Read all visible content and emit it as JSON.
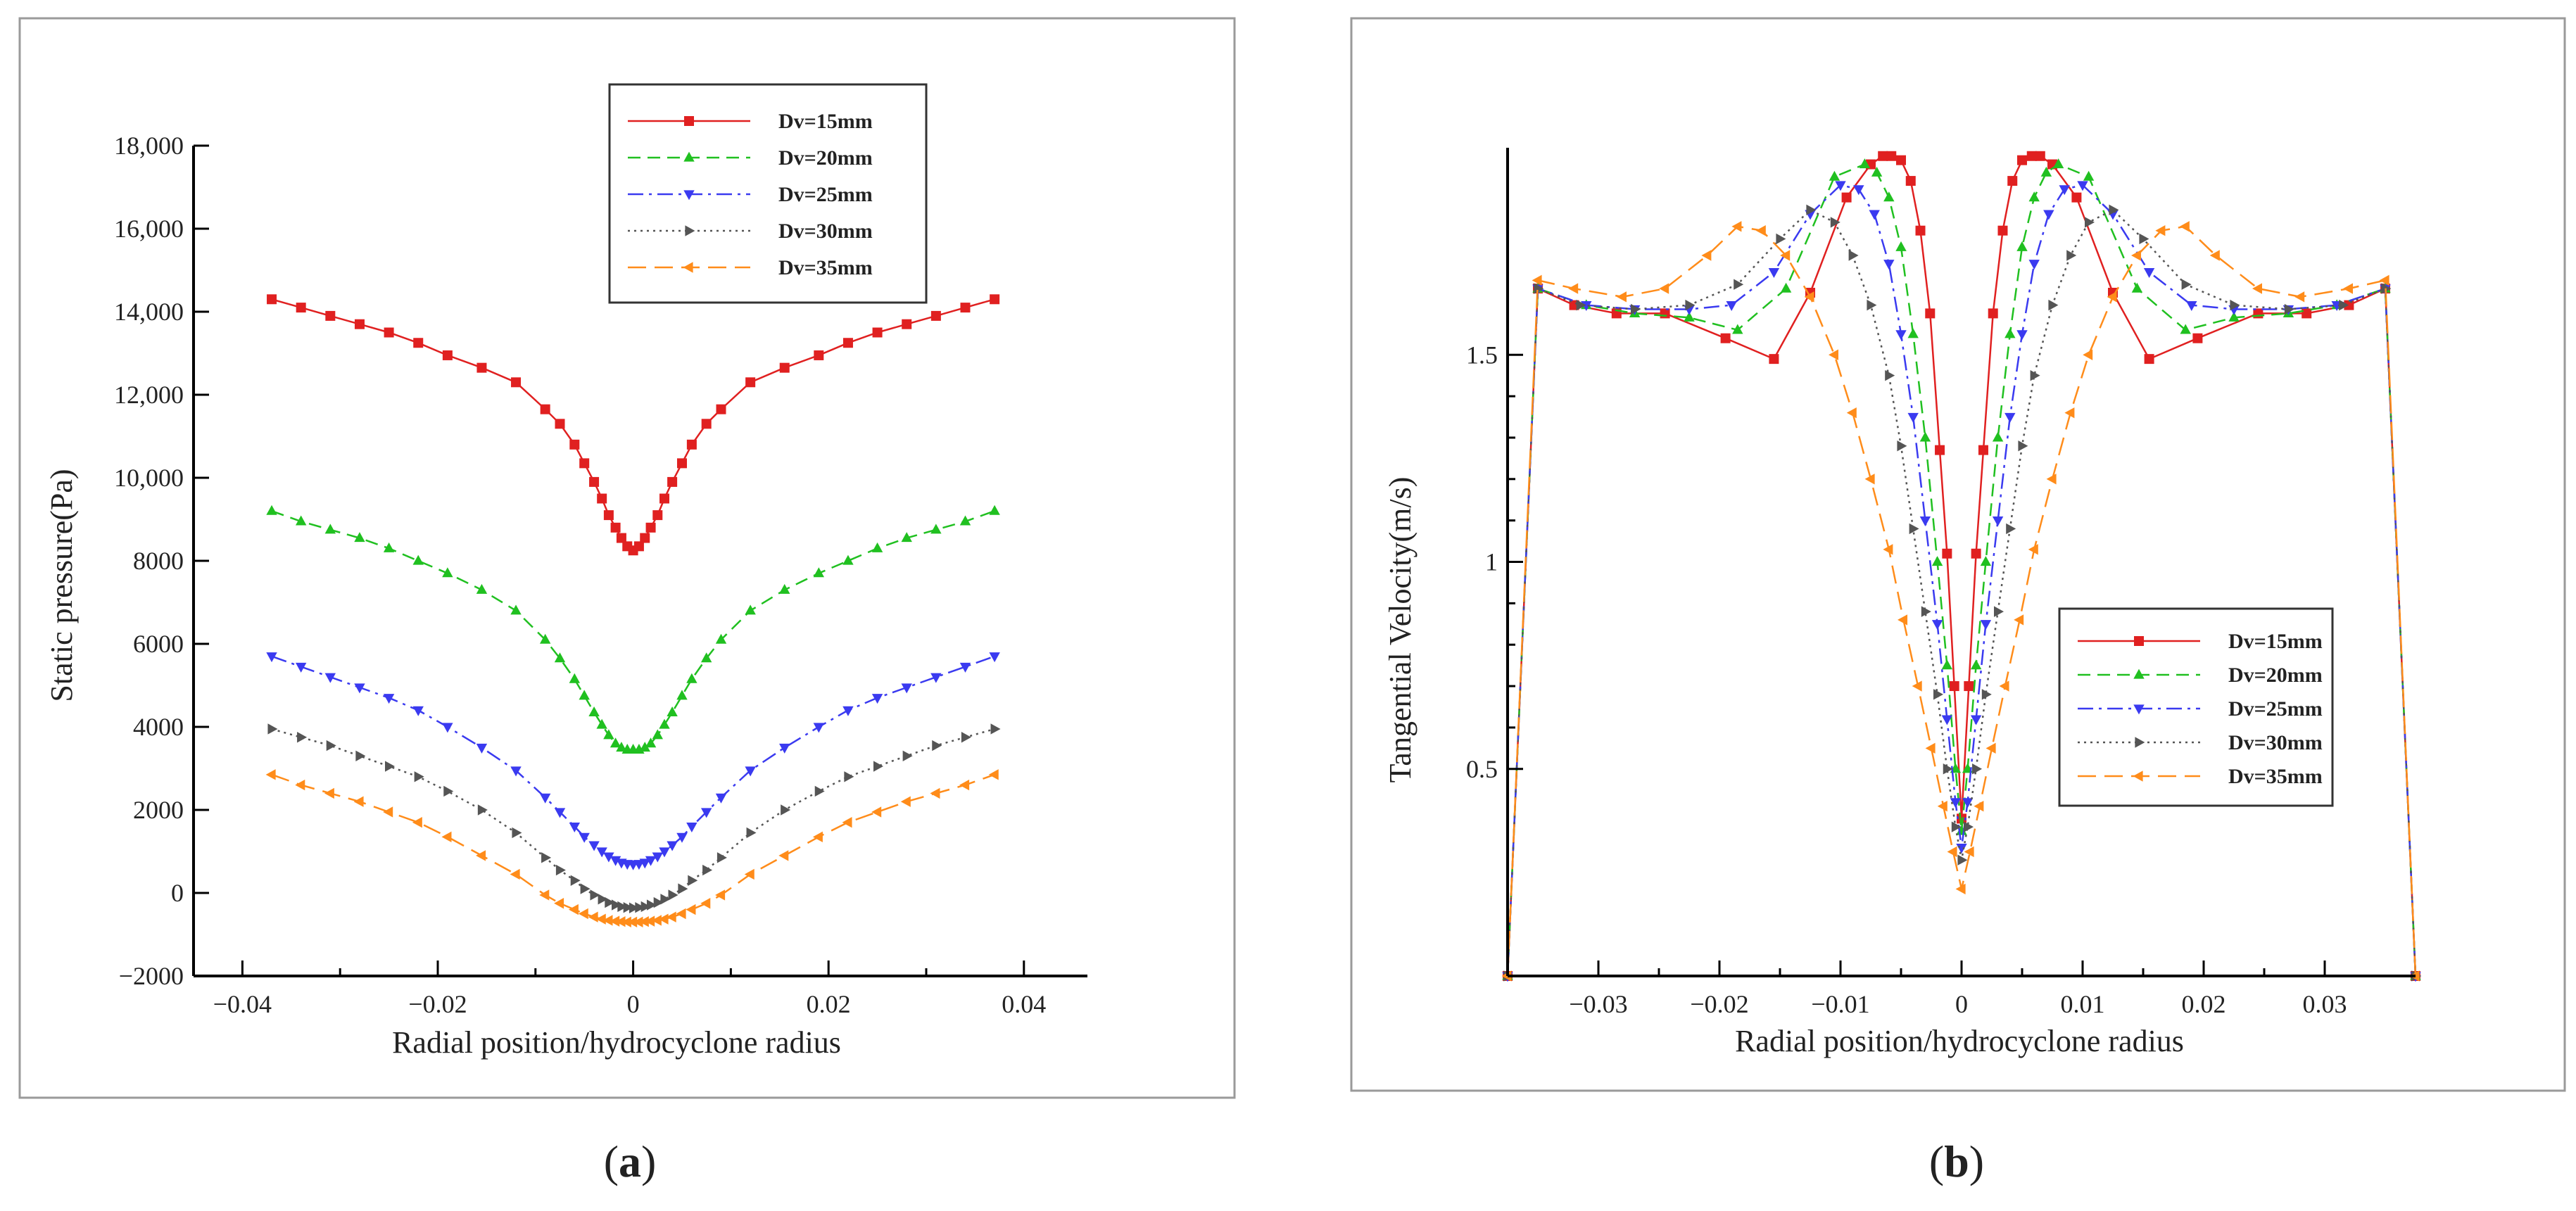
{
  "panels": [
    {
      "caption_letter": "a",
      "chart_data": {
        "type": "line",
        "title": "",
        "xlabel": "Radial position/hydrocyclone radius",
        "ylabel": "Static pressure(Pa)",
        "xlim": [
          -0.045,
          0.0465
        ],
        "ylim": [
          -2000,
          18000
        ],
        "xticks": [
          -0.04,
          -0.02,
          0,
          0.02,
          0.04
        ],
        "xtick_labels": [
          "−0.04",
          "−0.02",
          "0",
          "0.02",
          "0.04"
        ],
        "yticks": [
          -2000,
          0,
          2000,
          4000,
          6000,
          8000,
          10000,
          12000,
          14000,
          16000,
          18000
        ],
        "ytick_labels": [
          "−2000",
          "0",
          "2000",
          "4000",
          "6000",
          "8000",
          "10,000",
          "12,000",
          "14,000",
          "16,000",
          "18,000"
        ],
        "legend_position": "top-right",
        "x": [
          -0.037,
          -0.034,
          -0.031,
          -0.028,
          -0.025,
          -0.022,
          -0.019,
          -0.0155,
          -0.012,
          -0.009,
          -0.0075,
          -0.006,
          -0.005,
          -0.004,
          -0.0032,
          -0.0025,
          -0.0018,
          -0.0012,
          -0.0006,
          0,
          0.0006,
          0.0012,
          0.0018,
          0.0025,
          0.0032,
          0.004,
          0.005,
          0.006,
          0.0075,
          0.009,
          0.012,
          0.0155,
          0.019,
          0.022,
          0.025,
          0.028,
          0.031,
          0.034,
          0.037
        ],
        "series": [
          {
            "name": "Dv=15mm",
            "color": "#e02020",
            "dash": "",
            "marker": "square",
            "values": [
              14300,
              14100,
              13900,
              13700,
              13500,
              13250,
              12950,
              12650,
              12300,
              11650,
              11300,
              10800,
              10350,
              9900,
              9500,
              9100,
              8800,
              8550,
              8350,
              8250,
              8350,
              8550,
              8800,
              9100,
              9500,
              9900,
              10350,
              10800,
              11300,
              11650,
              12300,
              12650,
              12950,
              13250,
              13500,
              13700,
              13900,
              14100,
              14300
            ]
          },
          {
            "name": "Dv=20mm",
            "color": "#20c020",
            "dash": "18,10",
            "marker": "triangle-up",
            "values": [
              9200,
              8950,
              8750,
              8550,
              8300,
              8000,
              7700,
              7300,
              6800,
              6100,
              5650,
              5150,
              4750,
              4350,
              4050,
              3800,
              3600,
              3500,
              3450,
              3450,
              3450,
              3500,
              3600,
              3800,
              4050,
              4350,
              4750,
              5150,
              5650,
              6100,
              6800,
              7300,
              7700,
              8000,
              8300,
              8550,
              8750,
              8950,
              9200
            ]
          },
          {
            "name": "Dv=25mm",
            "color": "#3a3af0",
            "dash": "22,8,4,8",
            "marker": "triangle-down",
            "values": [
              5700,
              5450,
              5200,
              4950,
              4700,
              4400,
              4000,
              3500,
              2950,
              2300,
              1950,
              1600,
              1350,
              1150,
              1000,
              880,
              790,
              730,
              700,
              690,
              700,
              730,
              790,
              880,
              1000,
              1150,
              1350,
              1600,
              1950,
              2300,
              2950,
              3500,
              4000,
              4400,
              4700,
              4950,
              5200,
              5450,
              5700
            ]
          },
          {
            "name": "Dv=30mm",
            "color": "#555555",
            "dash": "3,6",
            "marker": "triangle-right",
            "values": [
              3950,
              3750,
              3550,
              3300,
              3050,
              2800,
              2450,
              2000,
              1450,
              850,
              550,
              300,
              100,
              -50,
              -150,
              -230,
              -290,
              -330,
              -350,
              -360,
              -350,
              -330,
              -290,
              -230,
              -150,
              -50,
              100,
              300,
              550,
              850,
              1450,
              2000,
              2450,
              2800,
              3050,
              3300,
              3550,
              3750,
              3950
            ]
          },
          {
            "name": "Dv=35mm",
            "color": "#ff8c1a",
            "dash": "26,12",
            "marker": "triangle-left",
            "values": [
              2850,
              2600,
              2400,
              2200,
              1950,
              1700,
              1350,
              900,
              450,
              -50,
              -250,
              -400,
              -500,
              -580,
              -630,
              -660,
              -680,
              -690,
              -700,
              -700,
              -700,
              -690,
              -680,
              -660,
              -630,
              -580,
              -500,
              -400,
              -250,
              -50,
              450,
              900,
              1350,
              1700,
              1950,
              2200,
              2400,
              2600,
              2850
            ]
          }
        ]
      }
    },
    {
      "caption_letter": "b",
      "chart_data": {
        "type": "line",
        "title": "",
        "xlabel": "Radial position/hydrocyclone radius",
        "ylabel": "Tangential Velocity(m/s)",
        "xlim": [
          -0.0375,
          0.0375
        ],
        "ylim": [
          0,
          2.0
        ],
        "xticks": [
          -0.03,
          -0.02,
          -0.01,
          0,
          0.01,
          0.02,
          0.03
        ],
        "xtick_labels": [
          "−0.03",
          "−0.02",
          "−0.01",
          "0",
          "0.01",
          "0.02",
          "0.03"
        ],
        "yticks": [
          0.5,
          1,
          1.5
        ],
        "ytick_labels": [
          "0.5",
          "1",
          "1.5"
        ],
        "legend_position": "lower-right",
        "series": [
          {
            "name": "Dv=15mm",
            "color": "#e02020",
            "dash": "",
            "marker": "square",
            "x": [
              -0.0375,
              -0.035,
              -0.032,
              -0.0285,
              -0.0245,
              -0.0195,
              -0.0155,
              -0.0125,
              -0.0095,
              -0.0075,
              -0.0065,
              -0.0058,
              -0.005,
              -0.0042,
              -0.0034,
              -0.0026,
              -0.0018,
              -0.0012,
              -0.0006,
              0,
              0.0006,
              0.0012,
              0.0018,
              0.0026,
              0.0034,
              0.0042,
              0.005,
              0.0058,
              0.0065,
              0.0075,
              0.0095,
              0.0125,
              0.0155,
              0.0195,
              0.0245,
              0.0285,
              0.032,
              0.035,
              0.0375
            ],
            "values": [
              0,
              1.66,
              1.62,
              1.6,
              1.6,
              1.54,
              1.49,
              1.65,
              1.88,
              1.96,
              1.98,
              1.98,
              1.97,
              1.92,
              1.8,
              1.6,
              1.27,
              1.02,
              0.7,
              0.38,
              0.7,
              1.02,
              1.27,
              1.6,
              1.8,
              1.92,
              1.97,
              1.98,
              1.98,
              1.96,
              1.88,
              1.65,
              1.49,
              1.54,
              1.6,
              1.6,
              1.62,
              1.66,
              0
            ]
          },
          {
            "name": "Dv=20mm",
            "color": "#20c020",
            "dash": "18,10",
            "marker": "triangle-up",
            "x": [
              -0.0375,
              -0.035,
              -0.031,
              -0.027,
              -0.0225,
              -0.0185,
              -0.0145,
              -0.0105,
              -0.008,
              -0.007,
              -0.006,
              -0.005,
              -0.004,
              -0.003,
              -0.002,
              -0.0012,
              -0.0005,
              0,
              0.0005,
              0.0012,
              0.002,
              0.003,
              0.004,
              0.005,
              0.006,
              0.007,
              0.008,
              0.0105,
              0.0145,
              0.0185,
              0.0225,
              0.027,
              0.031,
              0.035,
              0.0375
            ],
            "values": [
              0,
              1.66,
              1.62,
              1.6,
              1.59,
              1.56,
              1.66,
              1.93,
              1.96,
              1.94,
              1.88,
              1.76,
              1.55,
              1.3,
              1.0,
              0.75,
              0.5,
              0.35,
              0.5,
              0.75,
              1.0,
              1.3,
              1.55,
              1.76,
              1.88,
              1.94,
              1.96,
              1.93,
              1.66,
              1.56,
              1.59,
              1.6,
              1.62,
              1.66,
              0
            ]
          },
          {
            "name": "Dv=25mm",
            "color": "#3a3af0",
            "dash": "22,8,4,8",
            "marker": "triangle-down",
            "x": [
              -0.0375,
              -0.035,
              -0.031,
              -0.027,
              -0.0225,
              -0.019,
              -0.0155,
              -0.0125,
              -0.01,
              -0.0085,
              -0.0072,
              -0.006,
              -0.005,
              -0.004,
              -0.003,
              -0.002,
              -0.0012,
              -0.0005,
              0,
              0.0005,
              0.0012,
              0.002,
              0.003,
              0.004,
              0.005,
              0.006,
              0.0072,
              0.0085,
              0.01,
              0.0125,
              0.0155,
              0.019,
              0.0225,
              0.027,
              0.031,
              0.035,
              0.0375
            ],
            "values": [
              0,
              1.66,
              1.62,
              1.61,
              1.61,
              1.62,
              1.7,
              1.84,
              1.91,
              1.9,
              1.84,
              1.72,
              1.55,
              1.35,
              1.1,
              0.85,
              0.62,
              0.42,
              0.31,
              0.42,
              0.62,
              0.85,
              1.1,
              1.35,
              1.55,
              1.72,
              1.84,
              1.9,
              1.91,
              1.84,
              1.7,
              1.62,
              1.61,
              1.61,
              1.62,
              1.66,
              0
            ]
          },
          {
            "name": "Dv=30mm",
            "color": "#555555",
            "dash": "3,6",
            "marker": "triangle-right",
            "x": [
              -0.0375,
              -0.035,
              -0.0315,
              -0.027,
              -0.0225,
              -0.0185,
              -0.015,
              -0.0125,
              -0.0105,
              -0.009,
              -0.0075,
              -0.006,
              -0.005,
              -0.004,
              -0.003,
              -0.002,
              -0.0012,
              -0.0005,
              0,
              0.0005,
              0.0012,
              0.002,
              0.003,
              0.004,
              0.005,
              0.006,
              0.0075,
              0.009,
              0.0105,
              0.0125,
              0.015,
              0.0185,
              0.0225,
              0.027,
              0.0315,
              0.035,
              0.0375
            ],
            "values": [
              0,
              1.66,
              1.62,
              1.61,
              1.62,
              1.67,
              1.78,
              1.85,
              1.82,
              1.74,
              1.62,
              1.45,
              1.28,
              1.08,
              0.88,
              0.68,
              0.5,
              0.36,
              0.28,
              0.36,
              0.5,
              0.68,
              0.88,
              1.08,
              1.28,
              1.45,
              1.62,
              1.74,
              1.82,
              1.85,
              1.78,
              1.67,
              1.62,
              1.61,
              1.62,
              1.66,
              0
            ]
          },
          {
            "name": "Dv=35mm",
            "color": "#ff8c1a",
            "dash": "26,12",
            "marker": "triangle-left",
            "x": [
              -0.0375,
              -0.035,
              -0.032,
              -0.028,
              -0.0245,
              -0.021,
              -0.0185,
              -0.0165,
              -0.0145,
              -0.0125,
              -0.0105,
              -0.009,
              -0.0075,
              -0.006,
              -0.0048,
              -0.0036,
              -0.0025,
              -0.0015,
              -0.0007,
              0,
              0.0007,
              0.0015,
              0.0025,
              0.0036,
              0.0048,
              0.006,
              0.0075,
              0.009,
              0.0105,
              0.0125,
              0.0145,
              0.0165,
              0.0185,
              0.021,
              0.0245,
              0.028,
              0.032,
              0.035,
              0.0375
            ],
            "values": [
              0,
              1.68,
              1.66,
              1.64,
              1.66,
              1.74,
              1.81,
              1.8,
              1.74,
              1.64,
              1.5,
              1.36,
              1.2,
              1.03,
              0.86,
              0.7,
              0.55,
              0.41,
              0.3,
              0.21,
              0.3,
              0.41,
              0.55,
              0.7,
              0.86,
              1.03,
              1.2,
              1.36,
              1.5,
              1.64,
              1.74,
              1.8,
              1.81,
              1.74,
              1.66,
              1.64,
              1.66,
              1.68,
              0
            ]
          }
        ]
      }
    }
  ]
}
